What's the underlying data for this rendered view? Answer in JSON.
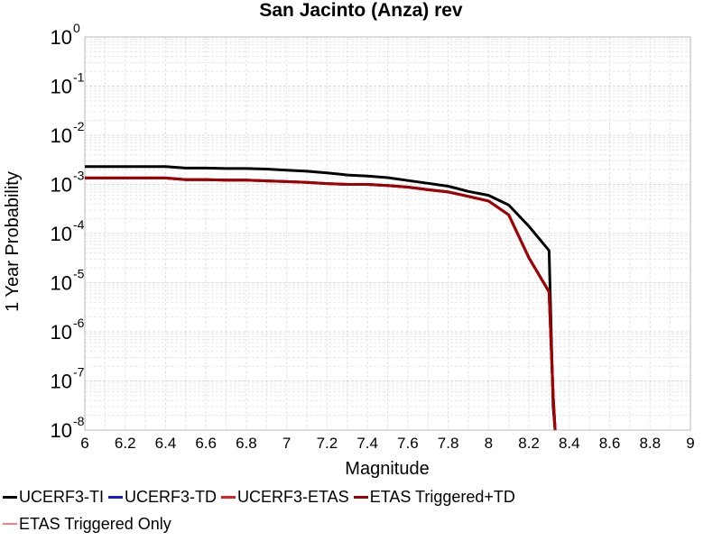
{
  "chart_data": {
    "type": "line",
    "title": "San Jacinto (Anza) rev",
    "xlabel": "Magnitude",
    "ylabel": "1 Year Probability",
    "xlim": [
      6,
      9
    ],
    "ylim": [
      1e-08,
      1
    ],
    "yscale": "log",
    "grid": true,
    "x_ticks": [
      "6",
      "6.2",
      "6.4",
      "6.6",
      "6.8",
      "7",
      "7.2",
      "7.4",
      "7.6",
      "7.8",
      "8",
      "8.2",
      "8.4",
      "8.6",
      "8.8",
      "9"
    ],
    "y_ticks": [
      {
        "base": "10",
        "exp": "-8",
        "value": 1e-08
      },
      {
        "base": "10",
        "exp": "-7",
        "value": 1e-07
      },
      {
        "base": "10",
        "exp": "-6",
        "value": 1e-06
      },
      {
        "base": "10",
        "exp": "-5",
        "value": 1e-05
      },
      {
        "base": "10",
        "exp": "-4",
        "value": 0.0001
      },
      {
        "base": "10",
        "exp": "-3",
        "value": 0.001
      },
      {
        "base": "10",
        "exp": "-2",
        "value": 0.01
      },
      {
        "base": "10",
        "exp": "-1",
        "value": 0.1
      },
      {
        "base": "10",
        "exp": "0",
        "value": 1
      }
    ],
    "legend_position": "bottom",
    "series": [
      {
        "name": "UCERF3-TI",
        "color": "#000000",
        "x": [
          6.0,
          6.1,
          6.2,
          6.3,
          6.4,
          6.5,
          6.6,
          6.7,
          6.8,
          6.9,
          7.0,
          7.1,
          7.2,
          7.3,
          7.4,
          7.5,
          7.6,
          7.7,
          7.8,
          7.9,
          8.0,
          8.1,
          8.2,
          8.3,
          8.32,
          8.33
        ],
        "y": [
          0.0023,
          0.0023,
          0.0023,
          0.0023,
          0.0023,
          0.00215,
          0.00215,
          0.0021,
          0.0021,
          0.00205,
          0.00195,
          0.00185,
          0.00172,
          0.00155,
          0.00148,
          0.00137,
          0.0012,
          0.00105,
          0.00092,
          0.00072,
          0.0006,
          0.00038,
          0.00014,
          4.5e-05,
          3e-08,
          1e-08
        ]
      },
      {
        "name": "UCERF3-TD",
        "color": "#1a1ad0",
        "x": [
          6.0,
          6.1,
          6.2,
          6.3,
          6.4,
          6.5,
          6.6,
          6.7,
          6.8,
          6.9,
          7.0,
          7.1,
          7.2,
          7.3,
          7.4,
          7.5,
          7.6,
          7.7,
          7.8,
          7.9,
          8.0,
          8.1,
          8.2,
          8.3,
          8.32,
          8.33
        ],
        "y": [
          0.00135,
          0.00135,
          0.00135,
          0.00135,
          0.00135,
          0.00125,
          0.00125,
          0.00122,
          0.00122,
          0.00118,
          0.00114,
          0.0011,
          0.00104,
          0.001,
          0.001,
          0.00095,
          0.00088,
          0.00078,
          0.0007,
          0.00057,
          0.00046,
          0.00024,
          3.2e-05,
          6.5e-06,
          5e-08,
          1e-08
        ]
      },
      {
        "name": "UCERF3-ETAS",
        "color": "#e02020",
        "x": [
          6.0,
          6.1,
          6.2,
          6.3,
          6.4,
          6.5,
          6.6,
          6.7,
          6.8,
          6.9,
          7.0,
          7.1,
          7.2,
          7.3,
          7.4,
          7.5,
          7.6,
          7.7,
          7.8,
          7.9,
          8.0,
          8.1,
          8.2,
          8.3,
          8.32,
          8.33
        ],
        "y": [
          0.00135,
          0.00135,
          0.00135,
          0.00135,
          0.00135,
          0.00125,
          0.00125,
          0.00122,
          0.00122,
          0.00118,
          0.00114,
          0.0011,
          0.00104,
          0.001,
          0.001,
          0.00095,
          0.00088,
          0.00078,
          0.0007,
          0.00057,
          0.00046,
          0.00024,
          3.2e-05,
          6.5e-06,
          5e-08,
          1e-08
        ]
      },
      {
        "name": "ETAS Triggered+TD",
        "color": "#a00000",
        "x": [
          6.0,
          6.1,
          6.2,
          6.3,
          6.4,
          6.5,
          6.6,
          6.7,
          6.8,
          6.9,
          7.0,
          7.1,
          7.2,
          7.3,
          7.4,
          7.5,
          7.6,
          7.7,
          7.8,
          7.9,
          8.0,
          8.1,
          8.2,
          8.3,
          8.32,
          8.33
        ],
        "y": [
          0.00135,
          0.00135,
          0.00135,
          0.00135,
          0.00135,
          0.00125,
          0.00125,
          0.00122,
          0.00122,
          0.00118,
          0.00114,
          0.0011,
          0.00104,
          0.001,
          0.001,
          0.00095,
          0.00088,
          0.00078,
          0.0007,
          0.00057,
          0.00046,
          0.00024,
          3.2e-05,
          6.5e-06,
          5e-08,
          1e-08
        ]
      },
      {
        "name": "ETAS Triggered Only",
        "color": "#f08080",
        "x": [],
        "y": []
      }
    ]
  }
}
